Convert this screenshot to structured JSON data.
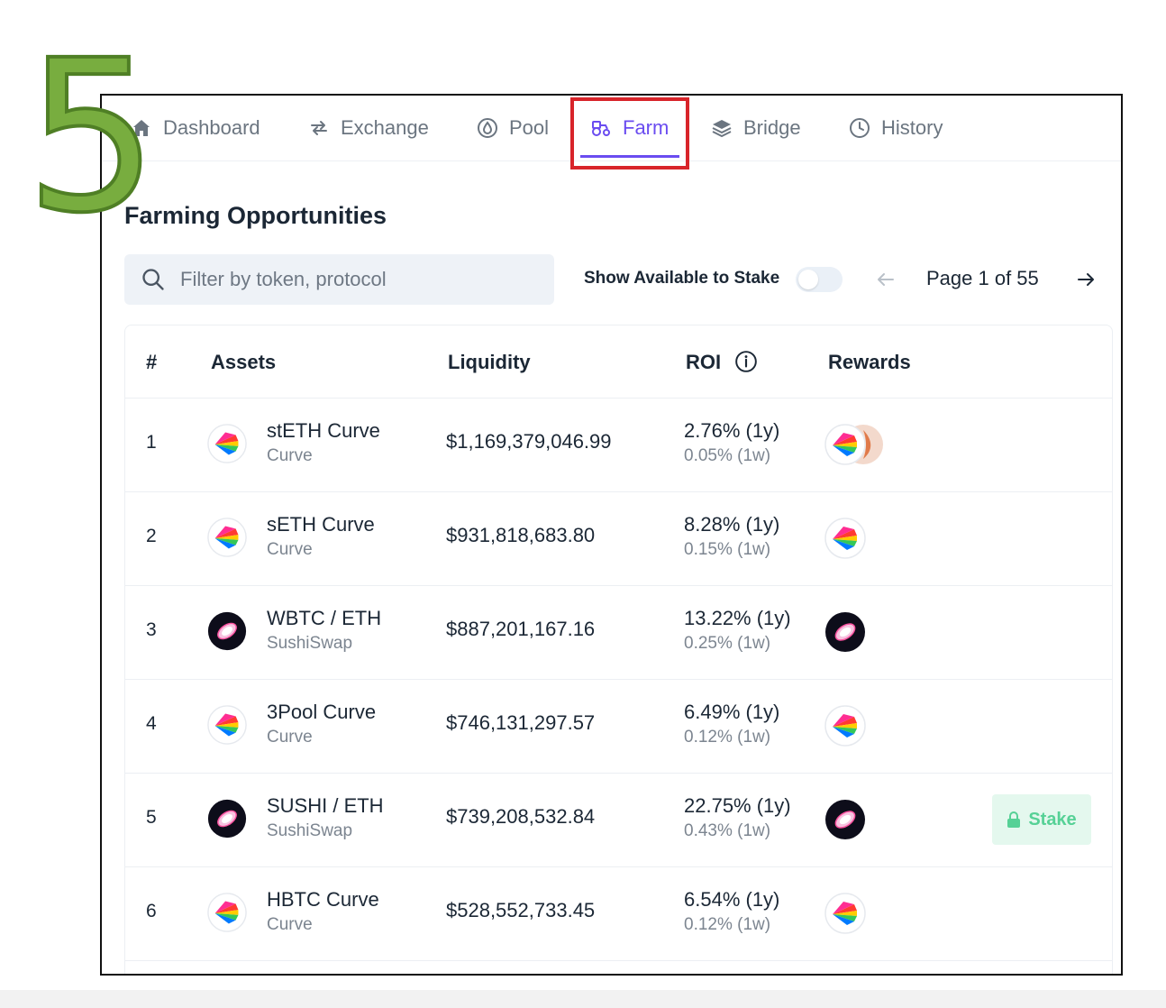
{
  "step_number": "5",
  "nav": {
    "items": [
      {
        "label": "Dashboard",
        "icon": "home-icon"
      },
      {
        "label": "Exchange",
        "icon": "swap-icon"
      },
      {
        "label": "Pool",
        "icon": "pool-drop-icon"
      },
      {
        "label": "Farm",
        "icon": "tractor-icon",
        "active": true
      },
      {
        "label": "Bridge",
        "icon": "layers-icon"
      },
      {
        "label": "History",
        "icon": "clock-icon"
      }
    ],
    "active_color": "#6a4cf0",
    "highlight_color": "#d8242a"
  },
  "page": {
    "title": "Farming Opportunities"
  },
  "filters": {
    "search_placeholder": "Filter by token, protocol",
    "search_value": "",
    "toggle_label": "Show Available to Stake",
    "toggle_on": false
  },
  "pagination": {
    "label": "Page 1 of 55"
  },
  "table": {
    "headers": {
      "index": "#",
      "assets": "Assets",
      "liquidity": "Liquidity",
      "roi": "ROI",
      "rewards": "Rewards"
    },
    "rows": [
      {
        "index": "1",
        "asset": "stETH Curve",
        "protocol": "Curve",
        "liquidity": "$1,169,379,046.99",
        "roi_1y": "2.76% (1y)",
        "roi_1w": "0.05% (1w)",
        "icon": "curve-logo-icon",
        "rewards": [
          "curve-logo-icon",
          "lido-logo-icon"
        ]
      },
      {
        "index": "2",
        "asset": "sETH Curve",
        "protocol": "Curve",
        "liquidity": "$931,818,683.80",
        "roi_1y": "8.28% (1y)",
        "roi_1w": "0.15% (1w)",
        "icon": "curve-logo-icon",
        "rewards": [
          "curve-logo-icon"
        ]
      },
      {
        "index": "3",
        "asset": "WBTC / ETH",
        "protocol": "SushiSwap",
        "liquidity": "$887,201,167.16",
        "roi_1y": "13.22% (1y)",
        "roi_1w": "0.25% (1w)",
        "icon": "sushi-logo-icon",
        "rewards": [
          "sushi-logo-icon"
        ]
      },
      {
        "index": "4",
        "asset": "3Pool Curve",
        "protocol": "Curve",
        "liquidity": "$746,131,297.57",
        "roi_1y": "6.49% (1y)",
        "roi_1w": "0.12% (1w)",
        "icon": "curve-logo-icon",
        "rewards": [
          "curve-logo-icon"
        ]
      },
      {
        "index": "5",
        "asset": "SUSHI / ETH",
        "protocol": "SushiSwap",
        "liquidity": "$739,208,532.84",
        "roi_1y": "22.75% (1y)",
        "roi_1w": "0.43% (1w)",
        "icon": "sushi-logo-icon",
        "rewards": [
          "sushi-logo-icon"
        ],
        "stake_label": "Stake"
      },
      {
        "index": "6",
        "asset": "HBTC Curve",
        "protocol": "Curve",
        "liquidity": "$528,552,733.45",
        "roi_1y": "6.54% (1y)",
        "roi_1w": "0.12% (1w)",
        "icon": "curve-logo-icon",
        "rewards": [
          "curve-logo-icon"
        ]
      }
    ],
    "stake_color": "#56d196"
  }
}
